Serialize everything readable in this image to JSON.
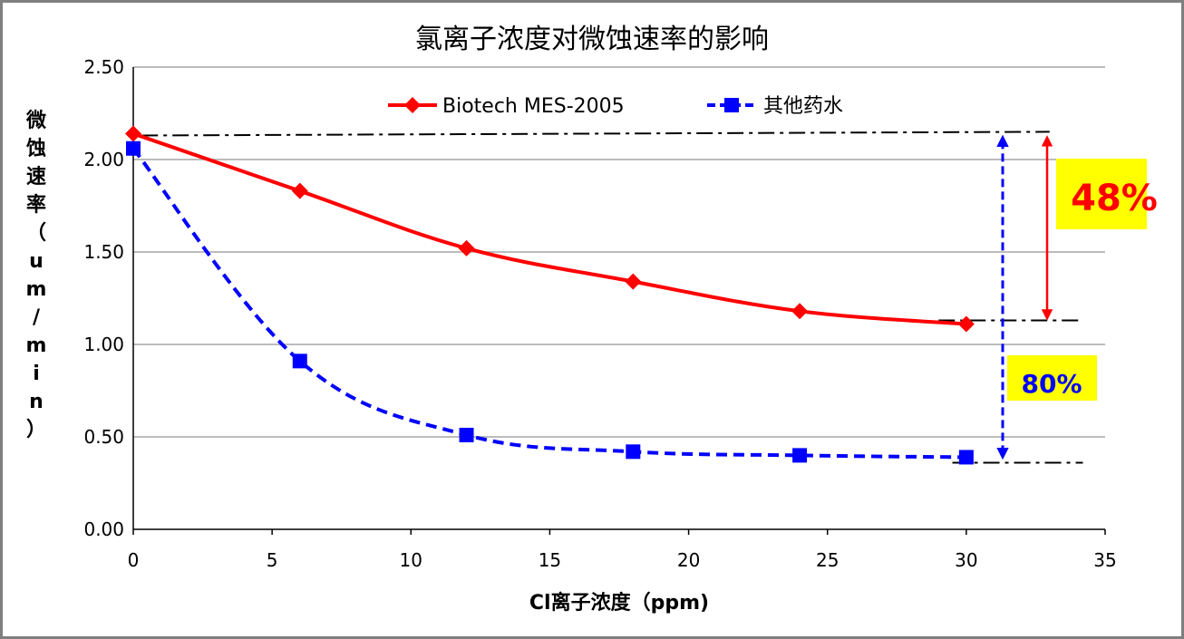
{
  "chart_data": {
    "type": "line",
    "title": "氯离子浓度对微蚀速率的影响",
    "xlabel": "Cl离子浓度（ppm)",
    "ylabel": "微蚀速率（um/min）",
    "xlim": [
      0,
      35
    ],
    "ylim": [
      0,
      2.5
    ],
    "x_ticks": [
      "0",
      "5",
      "10",
      "15",
      "20",
      "25",
      "30",
      "35"
    ],
    "y_ticks": [
      "0.00",
      "0.50",
      "1.00",
      "1.50",
      "2.00",
      "2.50"
    ],
    "grid": "horizontal",
    "legend_position": "top-center",
    "series": [
      {
        "name": "Biotech MES-2005",
        "color": "#ff0000",
        "marker": "diamond",
        "line_style": "solid",
        "x": [
          0,
          6,
          12,
          18,
          24,
          30
        ],
        "y": [
          2.14,
          1.83,
          1.52,
          1.34,
          1.18,
          1.11
        ]
      },
      {
        "name": "其他药水",
        "color": "#0000ff",
        "marker": "square",
        "line_style": "dashed",
        "x": [
          0,
          6,
          12,
          18,
          24,
          30
        ],
        "y": [
          2.06,
          0.91,
          0.51,
          0.42,
          0.4,
          0.39
        ]
      }
    ],
    "annotations": [
      {
        "text": "48%",
        "color": "#ff0000",
        "background": "#ffff00",
        "from_y": 2.15,
        "to_y": 1.13
      },
      {
        "text": "80%",
        "color": "#0000ff",
        "background": "#ffff00",
        "from_y": 2.15,
        "to_y": 0.36
      }
    ]
  }
}
